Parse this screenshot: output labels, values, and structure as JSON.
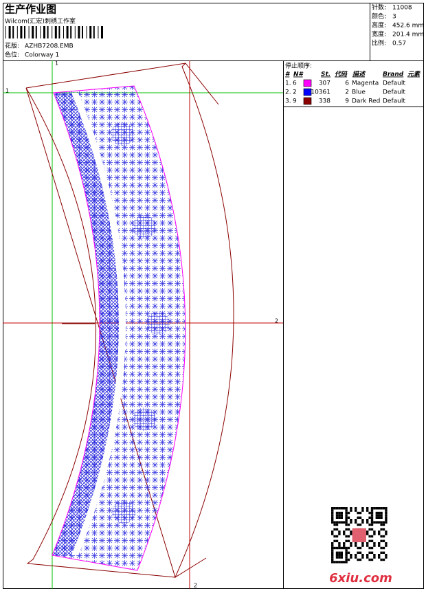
{
  "header": {
    "title": "生产作业图",
    "studio": "Wilcom(汇宏)刺绣工作室",
    "design_label": "花版:",
    "design": "AZHB7208.EMB",
    "colorway_label": "色位:",
    "colorway": "Colorway 1"
  },
  "stats": [
    {
      "label": "针数:",
      "value": "11008"
    },
    {
      "label": "颜色:",
      "value": "3"
    },
    {
      "label": "高度:",
      "value": "452.6 mm"
    },
    {
      "label": "宽度:",
      "value": "201.4 mm"
    },
    {
      "label": "比例:",
      "value": "0.57"
    }
  ],
  "stop_sequence": {
    "title": "停止顺序:",
    "columns": [
      "#",
      "N#",
      "St.",
      "代码",
      "描述",
      "Brand",
      "元素"
    ],
    "rows": [
      {
        "number": "1.",
        "needle": "6",
        "swatch": "#ff00ff",
        "stitches": "307",
        "code": "6",
        "description": "Magenta",
        "brand": "Default"
      },
      {
        "number": "2.",
        "needle": "2",
        "swatch": "#0000ff",
        "stitches": "10361",
        "code": "2",
        "description": "Blue",
        "brand": "Default"
      },
      {
        "number": "3.",
        "needle": "9",
        "swatch": "#8b0000",
        "stitches": "338",
        "code": "9",
        "description": "Dark Red",
        "brand": "Default"
      }
    ]
  },
  "markers": {
    "top": "1",
    "left": "1",
    "right": "2",
    "bottom": "2"
  },
  "watermark": "6xiu.com"
}
